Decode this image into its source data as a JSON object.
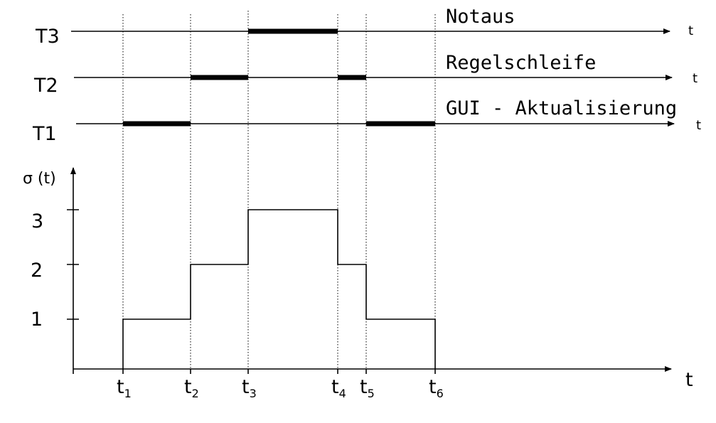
{
  "tasks": [
    {
      "id": "T3",
      "name": "Notaus",
      "axis_label": "t",
      "active": [
        [
          3,
          4
        ]
      ]
    },
    {
      "id": "T2",
      "name": "Regelschleife",
      "axis_label": "t",
      "active": [
        [
          2,
          3
        ],
        [
          4,
          5
        ]
      ]
    },
    {
      "id": "T1",
      "name": "GUI - Aktualisierung",
      "axis_label": "t",
      "active": [
        [
          1,
          2
        ],
        [
          5,
          6
        ]
      ]
    }
  ],
  "sigma": {
    "ylabel": "σ (t)",
    "xlabel": "t",
    "y_ticks": [
      "1",
      "2",
      "3"
    ],
    "steps": [
      {
        "from": 1,
        "to": 2,
        "level": 1
      },
      {
        "from": 2,
        "to": 3,
        "level": 2
      },
      {
        "from": 3,
        "to": 4,
        "level": 3
      },
      {
        "from": 4,
        "to": 5,
        "level": 2
      },
      {
        "from": 5,
        "to": 6,
        "level": 1
      }
    ]
  },
  "time_marks": [
    {
      "label": "t",
      "sub": "1"
    },
    {
      "label": "t",
      "sub": "2"
    },
    {
      "label": "t",
      "sub": "3"
    },
    {
      "label": "t",
      "sub": "4"
    },
    {
      "label": "t",
      "sub": "5"
    },
    {
      "label": "t",
      "sub": "6"
    }
  ]
}
